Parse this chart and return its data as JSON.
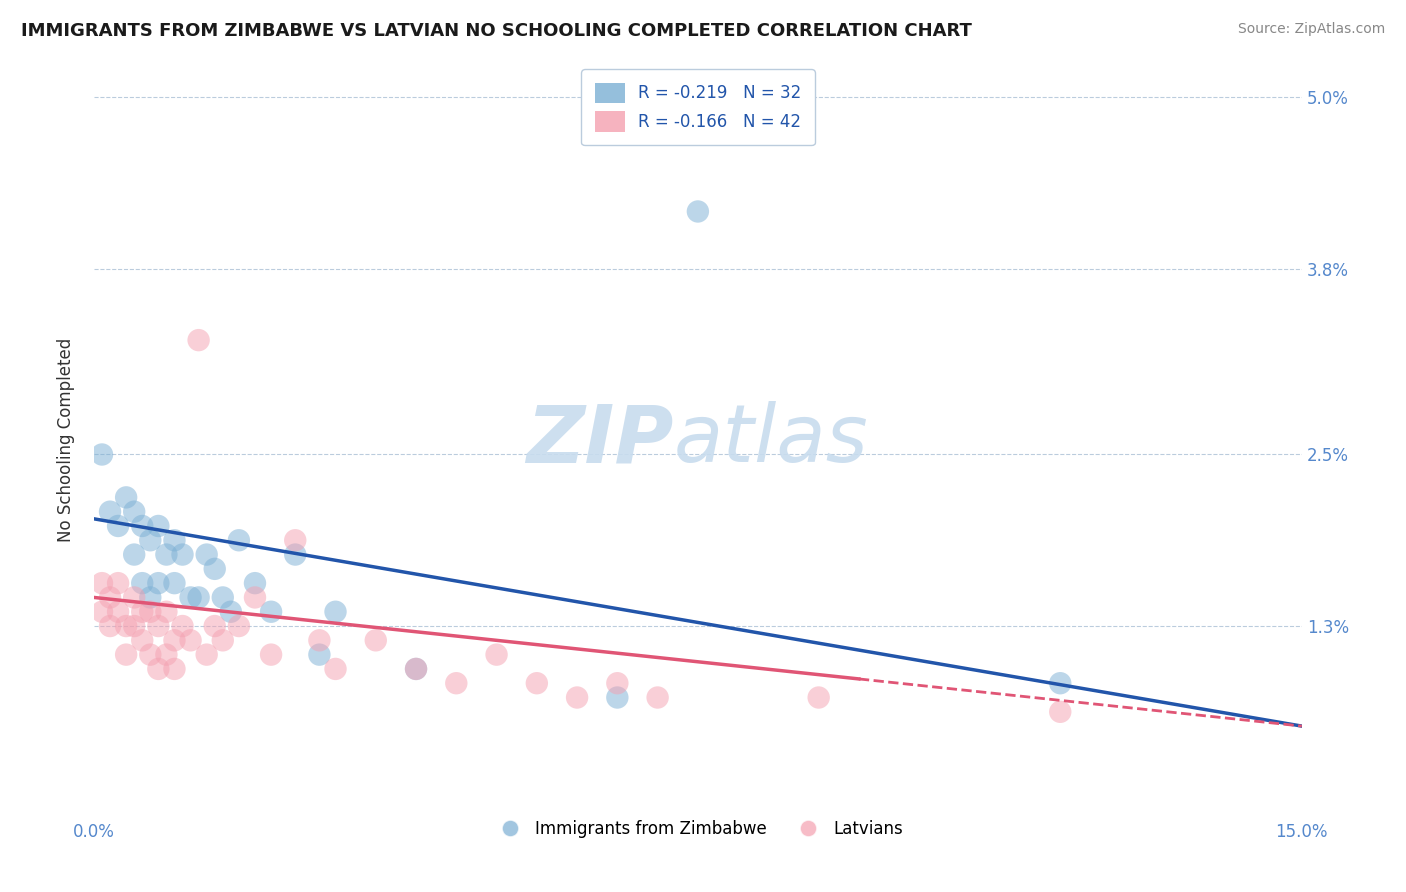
{
  "title": "IMMIGRANTS FROM ZIMBABWE VS LATVIAN NO SCHOOLING COMPLETED CORRELATION CHART",
  "source": "Source: ZipAtlas.com",
  "ylabel": "No Schooling Completed",
  "xlim": [
    0,
    0.15
  ],
  "ylim": [
    0,
    0.052
  ],
  "yticks": [
    0.013,
    0.025,
    0.038,
    0.05
  ],
  "ytick_labels": [
    "1.3%",
    "2.5%",
    "3.8%",
    "5.0%"
  ],
  "xtick_labels": [
    "0.0%",
    "15.0%"
  ],
  "legend_blue_text": "R = -0.219   N = 32",
  "legend_pink_text": "R = -0.166   N = 42",
  "legend_blue_label": "Immigrants from Zimbabwe",
  "legend_pink_label": "Latvians",
  "blue_color": "#7BAFD4",
  "pink_color": "#F4A0B0",
  "regression_blue_color": "#2255AA",
  "regression_pink_color": "#E05575",
  "regression_blue_start_y": 0.0205,
  "regression_blue_end_y": 0.006,
  "regression_pink_start_y": 0.015,
  "regression_pink_end_y": 0.006,
  "regression_pink_solid_end_x": 0.095,
  "watermark_zip": "ZIP",
  "watermark_atlas": "atlas",
  "watermark_color": "#C8DCEE",
  "title_fontsize": 13,
  "tick_label_color": "#5588CC",
  "blue_scatter_x": [
    0.001,
    0.002,
    0.003,
    0.004,
    0.005,
    0.005,
    0.006,
    0.006,
    0.007,
    0.007,
    0.008,
    0.008,
    0.009,
    0.01,
    0.01,
    0.011,
    0.012,
    0.013,
    0.014,
    0.015,
    0.016,
    0.017,
    0.018,
    0.02,
    0.022,
    0.025,
    0.028,
    0.03,
    0.04,
    0.065,
    0.075,
    0.12
  ],
  "blue_scatter_y": [
    0.025,
    0.021,
    0.02,
    0.022,
    0.021,
    0.018,
    0.02,
    0.016,
    0.019,
    0.015,
    0.02,
    0.016,
    0.018,
    0.019,
    0.016,
    0.018,
    0.015,
    0.015,
    0.018,
    0.017,
    0.015,
    0.014,
    0.019,
    0.016,
    0.014,
    0.018,
    0.011,
    0.014,
    0.01,
    0.008,
    0.042,
    0.009
  ],
  "pink_scatter_x": [
    0.001,
    0.001,
    0.002,
    0.002,
    0.003,
    0.003,
    0.004,
    0.004,
    0.005,
    0.005,
    0.006,
    0.006,
    0.007,
    0.007,
    0.008,
    0.008,
    0.009,
    0.009,
    0.01,
    0.01,
    0.011,
    0.012,
    0.013,
    0.014,
    0.015,
    0.016,
    0.018,
    0.02,
    0.022,
    0.025,
    0.028,
    0.03,
    0.035,
    0.04,
    0.045,
    0.05,
    0.055,
    0.06,
    0.065,
    0.07,
    0.09,
    0.12
  ],
  "pink_scatter_y": [
    0.016,
    0.014,
    0.015,
    0.013,
    0.016,
    0.014,
    0.013,
    0.011,
    0.015,
    0.013,
    0.014,
    0.012,
    0.014,
    0.011,
    0.013,
    0.01,
    0.014,
    0.011,
    0.012,
    0.01,
    0.013,
    0.012,
    0.033,
    0.011,
    0.013,
    0.012,
    0.013,
    0.015,
    0.011,
    0.019,
    0.012,
    0.01,
    0.012,
    0.01,
    0.009,
    0.011,
    0.009,
    0.008,
    0.009,
    0.008,
    0.008,
    0.007
  ]
}
